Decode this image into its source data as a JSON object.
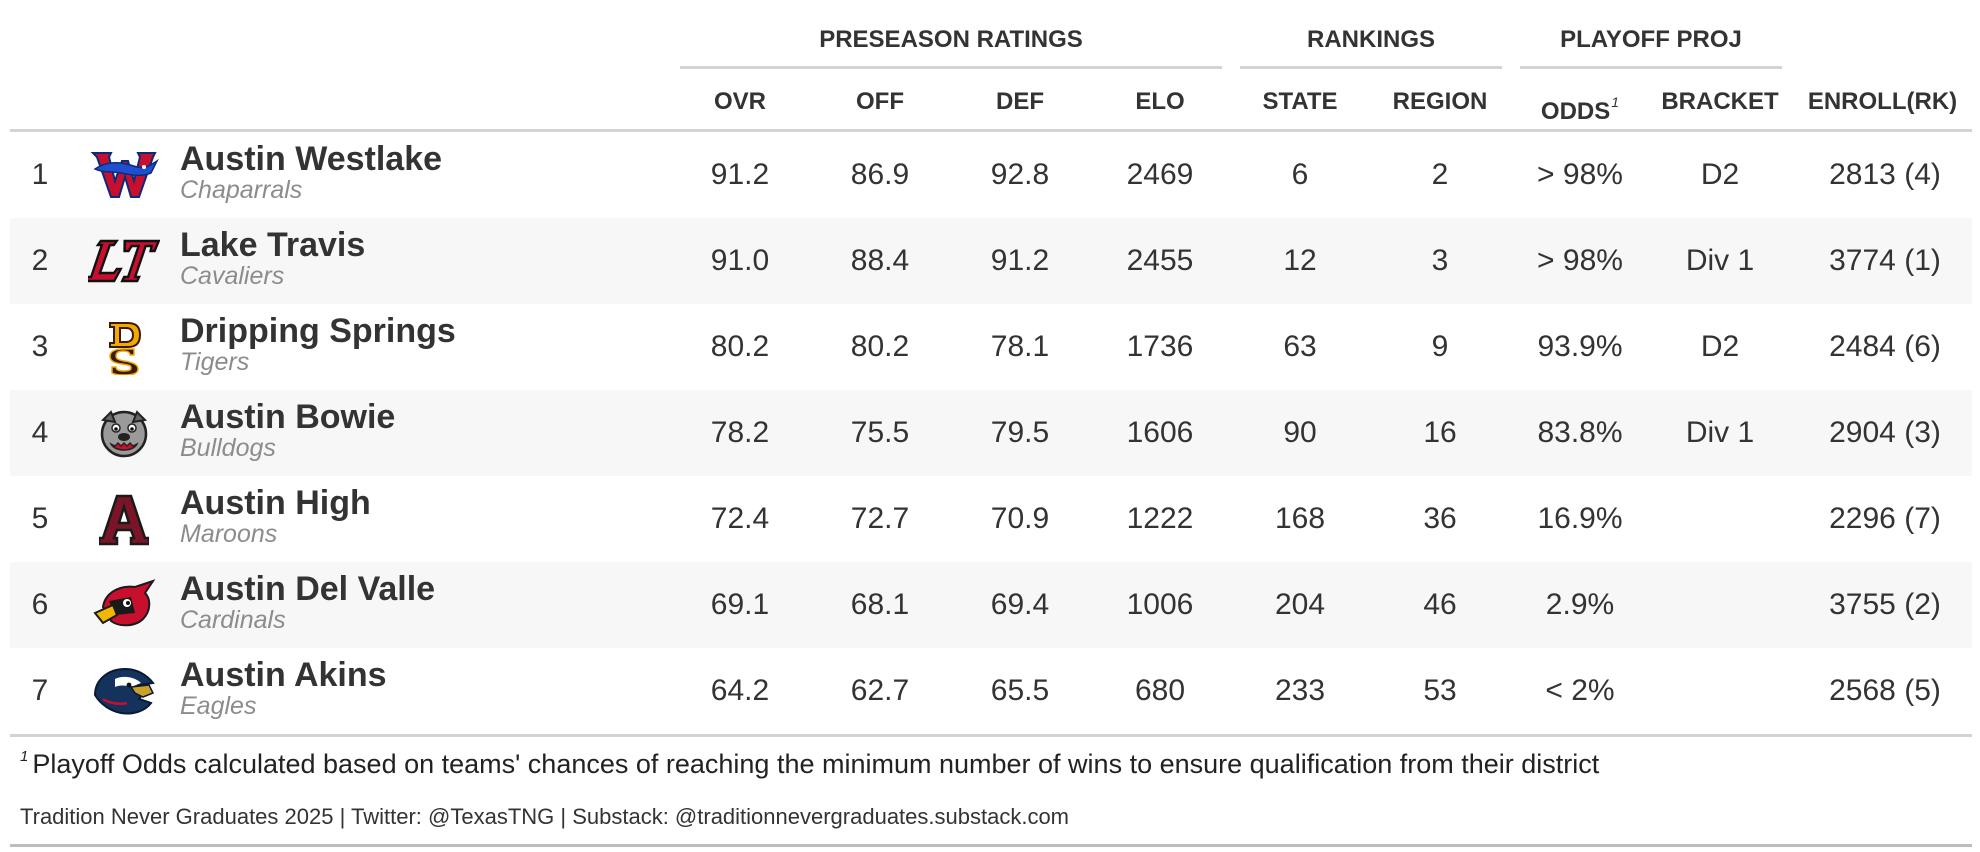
{
  "spanners": {
    "preseason": "PRESEASON RATINGS",
    "rankings": "RANKINGS",
    "playoff": "PLAYOFF PROJ"
  },
  "columns": {
    "ovr": "OVR",
    "off": "OFF",
    "def": "DEF",
    "elo": "ELO",
    "state": "STATE",
    "region": "REGION",
    "odds": "ODDS",
    "odds_marker": "1",
    "bracket": "BRACKET",
    "enroll": "ENROLL(RK)"
  },
  "teams": [
    {
      "rank": "1",
      "logo": "westlake-chaparral-logo",
      "name": "Austin Westlake",
      "mascot": "Chaparrals",
      "ovr": "91.2",
      "off": "86.9",
      "def": "92.8",
      "elo": "2469",
      "state": "6",
      "region": "2",
      "odds": "> 98%",
      "bracket": "D2",
      "enroll": "2813 (4)"
    },
    {
      "rank": "2",
      "logo": "lake-travis-lt-logo",
      "name": "Lake Travis",
      "mascot": "Cavaliers",
      "ovr": "91.0",
      "off": "88.4",
      "def": "91.2",
      "elo": "2455",
      "state": "12",
      "region": "3",
      "odds": "> 98%",
      "bracket": "Div 1",
      "enroll": "3774 (1)"
    },
    {
      "rank": "3",
      "logo": "dripping-springs-ds-logo",
      "name": "Dripping Springs",
      "mascot": "Tigers",
      "ovr": "80.2",
      "off": "80.2",
      "def": "78.1",
      "elo": "1736",
      "state": "63",
      "region": "9",
      "odds": "93.9%",
      "bracket": "D2",
      "enroll": "2484 (6)"
    },
    {
      "rank": "4",
      "logo": "bowie-bulldog-logo",
      "name": "Austin Bowie",
      "mascot": "Bulldogs",
      "ovr": "78.2",
      "off": "75.5",
      "def": "79.5",
      "elo": "1606",
      "state": "90",
      "region": "16",
      "odds": "83.8%",
      "bracket": "Div 1",
      "enroll": "2904 (3)"
    },
    {
      "rank": "5",
      "logo": "austin-high-a-logo",
      "name": "Austin High",
      "mascot": "Maroons",
      "ovr": "72.4",
      "off": "72.7",
      "def": "70.9",
      "elo": "1222",
      "state": "168",
      "region": "36",
      "odds": "16.9%",
      "bracket": "",
      "enroll": "2296 (7)"
    },
    {
      "rank": "6",
      "logo": "del-valle-cardinal-logo",
      "name": "Austin Del Valle",
      "mascot": "Cardinals",
      "ovr": "69.1",
      "off": "68.1",
      "def": "69.4",
      "elo": "1006",
      "state": "204",
      "region": "46",
      "odds": "2.9%",
      "bracket": "",
      "enroll": "3755 (2)"
    },
    {
      "rank": "7",
      "logo": "akins-eagle-logo",
      "name": "Austin Akins",
      "mascot": "Eagles",
      "ovr": "64.2",
      "off": "62.7",
      "def": "65.5",
      "elo": "680",
      "state": "233",
      "region": "53",
      "odds": "< 2%",
      "bracket": "",
      "enroll": "2568 (5)"
    }
  ],
  "footnote": {
    "marker": "1",
    "text": "Playoff Odds calculated based on teams' chances of reaching the minimum number of wins to ensure qualification from their district"
  },
  "source": "Tradition Never Graduates 2025 | Twitter: @TexasTNG | Substack: @traditionnevergraduates.substack.com",
  "colors": {
    "stripe": "#f7f7f7",
    "rule": "#d3d3d3",
    "text": "#333333",
    "mascot": "#8c8c8c"
  }
}
